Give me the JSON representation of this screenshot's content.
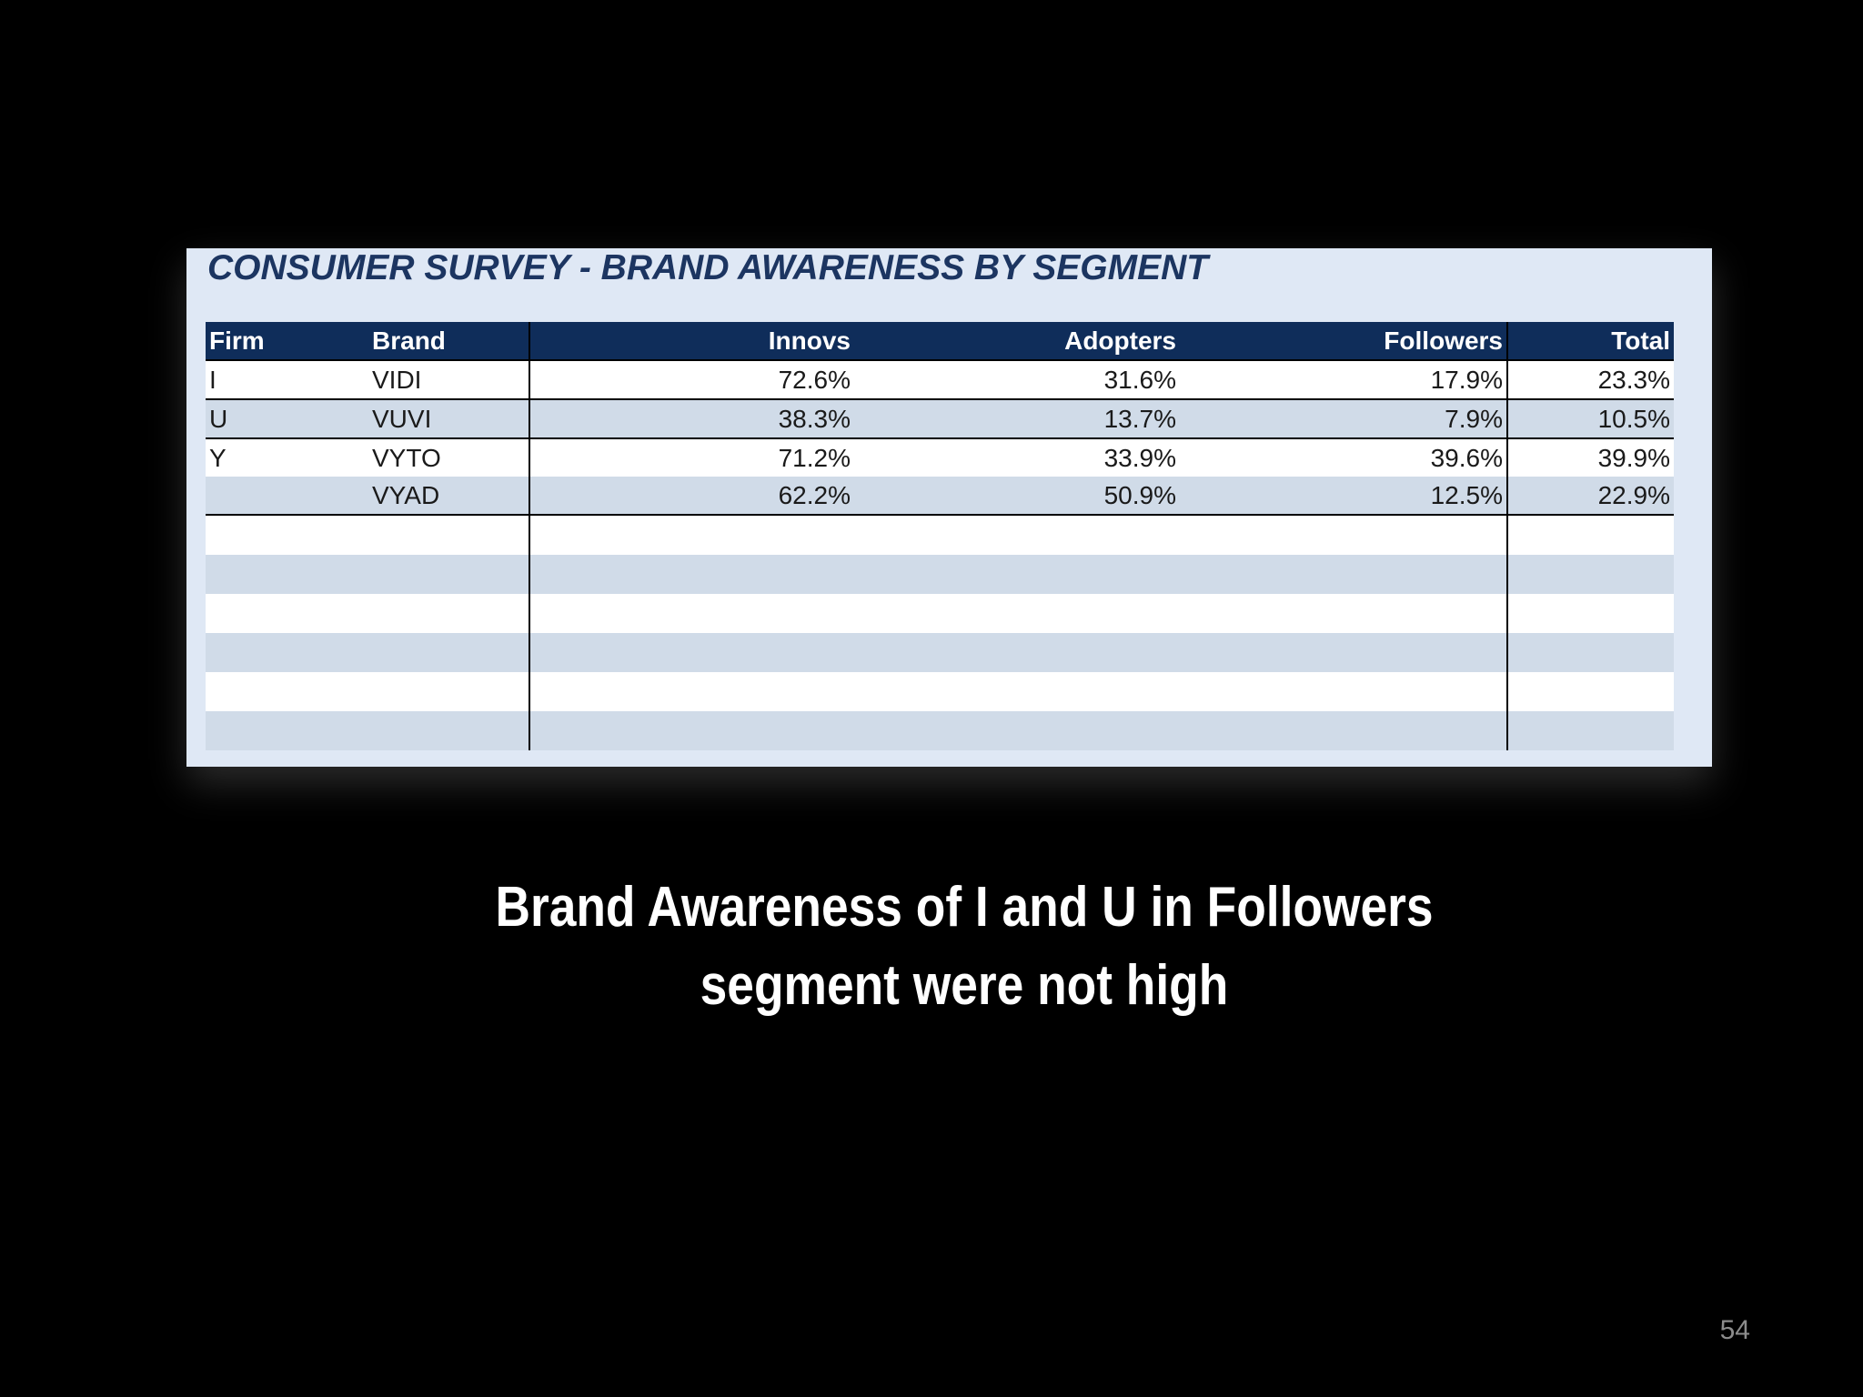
{
  "survey": {
    "title": "CONSUMER SURVEY - BRAND AWARENESS BY SEGMENT",
    "columns": [
      "Firm",
      "Brand",
      "Innovs",
      "Adopters",
      "Followers",
      "Total"
    ],
    "rows": [
      {
        "firm": "I",
        "brand": "VIDI",
        "innovs": "72.6%",
        "adopters": "31.6%",
        "followers": "17.9%",
        "total": "23.3%"
      },
      {
        "firm": "U",
        "brand": "VUVI",
        "innovs": "38.3%",
        "adopters": "13.7%",
        "followers": "7.9%",
        "total": "10.5%"
      },
      {
        "firm": "Y",
        "brand": "VYTO",
        "innovs": "71.2%",
        "adopters": "33.9%",
        "followers": "39.6%",
        "total": "39.9%"
      },
      {
        "firm": "",
        "brand": "VYAD",
        "innovs": "62.2%",
        "adopters": "50.9%",
        "followers": "12.5%",
        "total": "22.9%"
      }
    ]
  },
  "caption": {
    "line1": "Brand Awareness of I and U in Followers",
    "line2": "segment were not high"
  },
  "page_number": "54",
  "colors": {
    "slide_background": "#000000",
    "panel_background": "#dfe8f5",
    "header_background": "#0f2d5a",
    "title_color": "#1c3561",
    "band_color": "#d0dbe8"
  }
}
